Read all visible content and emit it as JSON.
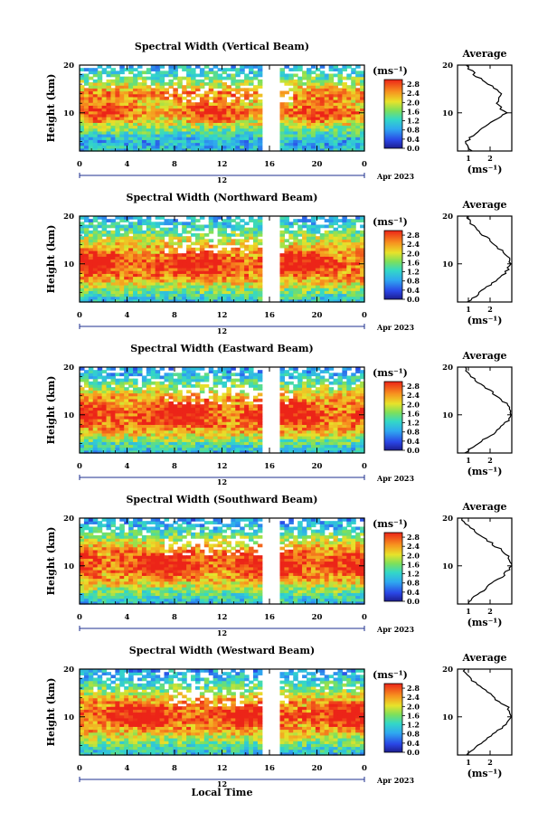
{
  "panels": [
    {
      "title": "Spectral Width (Vertical Beam)",
      "avg_ticks": [
        "1",
        "2"
      ]
    },
    {
      "title": "Spectral Width (Northward Beam)",
      "avg_ticks": [
        "1",
        "2"
      ]
    },
    {
      "title": "Spectral Width (Eastward Beam)",
      "avg_ticks": [
        "1",
        "2"
      ]
    },
    {
      "title": "Spectral Width (Southward Beam)",
      "avg_ticks": [
        "1",
        "2"
      ]
    },
    {
      "title": "Spectral Width (Westward Beam)",
      "avg_ticks": [
        "1",
        "2"
      ]
    }
  ],
  "common": {
    "ylabel": "Height (km)",
    "yticks": [
      "20",
      "10"
    ],
    "xticks": [
      "0",
      "4",
      "8",
      "12",
      "16",
      "20",
      "0"
    ],
    "day_label": "12",
    "month_label": "Apr 2023",
    "unit_label": "(ms⁻¹)",
    "avg_title": "Average",
    "avg_unit": "(ms⁻¹)",
    "colorbar_ticks": [
      "2.8",
      "2.4",
      "2.0",
      "1.6",
      "1.2",
      "0.8",
      "0.4",
      "0.0"
    ],
    "xlabel": "Local Time"
  },
  "chart_data": {
    "type": "heatmap",
    "x_range": [
      0,
      24
    ],
    "y_range": [
      2,
      20
    ],
    "z_range": [
      0,
      3
    ],
    "data_gap_hours": [
      15.3,
      17.0
    ],
    "profiles": {
      "heights": [
        2,
        4,
        6,
        8,
        10,
        12,
        14,
        16,
        18,
        20
      ],
      "vertical": [
        1.1,
        0.9,
        1.4,
        2.1,
        2.7,
        2.3,
        2.6,
        1.9,
        1.3,
        0.9
      ],
      "northward": [
        1.0,
        1.5,
        2.1,
        2.7,
        3.0,
        2.7,
        2.2,
        1.7,
        1.2,
        0.9
      ],
      "eastward": [
        0.9,
        1.4,
        2.1,
        2.7,
        3.0,
        2.8,
        2.3,
        1.7,
        1.1,
        0.8
      ],
      "southward": [
        1.0,
        1.4,
        2.0,
        2.6,
        3.0,
        2.9,
        2.3,
        1.7,
        1.1,
        0.7
      ],
      "westward": [
        1.0,
        1.4,
        2.0,
        2.6,
        3.0,
        2.8,
        2.2,
        1.6,
        1.1,
        0.8
      ]
    }
  }
}
